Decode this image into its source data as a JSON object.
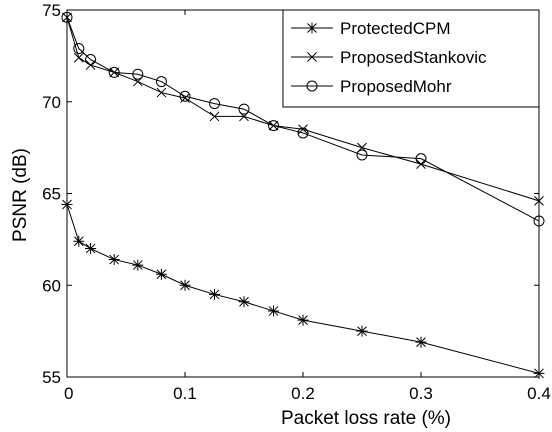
{
  "chart_data": {
    "type": "line",
    "title": "",
    "xlabel": "Packet loss rate (%)",
    "ylabel": "PSNR (dB)",
    "xlim": [
      0,
      0.4
    ],
    "ylim": [
      55,
      75
    ],
    "xticks": [
      0,
      0.1,
      0.2,
      0.3,
      0.4
    ],
    "xtick_labels": [
      "0",
      "0.1",
      "0.2",
      "0.3",
      "0.4"
    ],
    "yticks": [
      55,
      60,
      65,
      70,
      75
    ],
    "ytick_labels": [
      "55",
      "60",
      "65",
      "70",
      "75"
    ],
    "grid": false,
    "legend_position": "top-right",
    "series": [
      {
        "name": "ProtectedCPM",
        "marker": "asterisk",
        "color": "#000000",
        "x": [
          0,
          0.01,
          0.02,
          0.04,
          0.06,
          0.08,
          0.1,
          0.125,
          0.15,
          0.175,
          0.2,
          0.25,
          0.3,
          0.4
        ],
        "y": [
          64.4,
          62.4,
          62.0,
          61.4,
          61.1,
          60.6,
          60.0,
          59.5,
          59.1,
          58.6,
          58.1,
          57.5,
          56.9,
          55.2
        ]
      },
      {
        "name": "ProposedStankovic",
        "marker": "x",
        "color": "#000000",
        "x": [
          0,
          0.01,
          0.02,
          0.04,
          0.06,
          0.08,
          0.1,
          0.125,
          0.15,
          0.175,
          0.2,
          0.25,
          0.3,
          0.4
        ],
        "y": [
          74.6,
          72.4,
          72.0,
          71.6,
          71.1,
          70.5,
          70.2,
          69.2,
          69.2,
          68.7,
          68.5,
          67.5,
          66.6,
          64.6
        ]
      },
      {
        "name": "ProposedMohr",
        "marker": "circle",
        "color": "#000000",
        "x": [
          0,
          0.01,
          0.02,
          0.04,
          0.06,
          0.08,
          0.1,
          0.125,
          0.15,
          0.175,
          0.2,
          0.25,
          0.3,
          0.4
        ],
        "y": [
          74.6,
          72.9,
          72.3,
          71.6,
          71.5,
          71.1,
          70.3,
          69.9,
          69.6,
          68.7,
          68.3,
          67.1,
          66.9,
          63.5
        ]
      }
    ]
  }
}
